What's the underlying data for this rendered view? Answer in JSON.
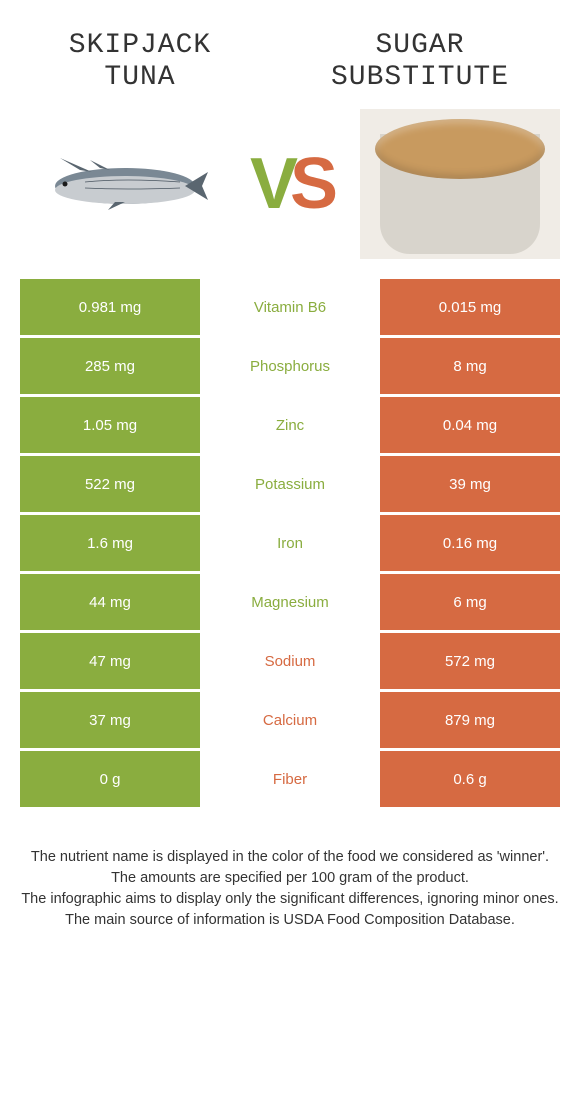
{
  "header": {
    "left_title": "Skipjack tuna",
    "right_title": "Sugar substitute",
    "vs_v": "V",
    "vs_s": "S"
  },
  "colors": {
    "green": "#8aad3f",
    "orange": "#d66a42",
    "white": "#ffffff",
    "text": "#333333"
  },
  "rows": [
    {
      "left": "0.981 mg",
      "label": "Vitamin B6",
      "right": "0.015 mg",
      "winner": "green"
    },
    {
      "left": "285 mg",
      "label": "Phosphorus",
      "right": "8 mg",
      "winner": "green"
    },
    {
      "left": "1.05 mg",
      "label": "Zinc",
      "right": "0.04 mg",
      "winner": "green"
    },
    {
      "left": "522 mg",
      "label": "Potassium",
      "right": "39 mg",
      "winner": "green"
    },
    {
      "left": "1.6 mg",
      "label": "Iron",
      "right": "0.16 mg",
      "winner": "green"
    },
    {
      "left": "44 mg",
      "label": "Magnesium",
      "right": "6 mg",
      "winner": "green"
    },
    {
      "left": "47 mg",
      "label": "Sodium",
      "right": "572 mg",
      "winner": "orange"
    },
    {
      "left": "37 mg",
      "label": "Calcium",
      "right": "879 mg",
      "winner": "orange"
    },
    {
      "left": "0 g",
      "label": "Fiber",
      "right": "0.6 g",
      "winner": "orange"
    }
  ],
  "footer": {
    "line1": "The nutrient name is displayed in the color of the food we considered as 'winner'.",
    "line2": "The amounts are specified per 100 gram of the product.",
    "line3": "The infographic aims to display only the significant differences, ignoring minor ones.",
    "line4": "The main source of information is USDA Food Composition Database."
  }
}
